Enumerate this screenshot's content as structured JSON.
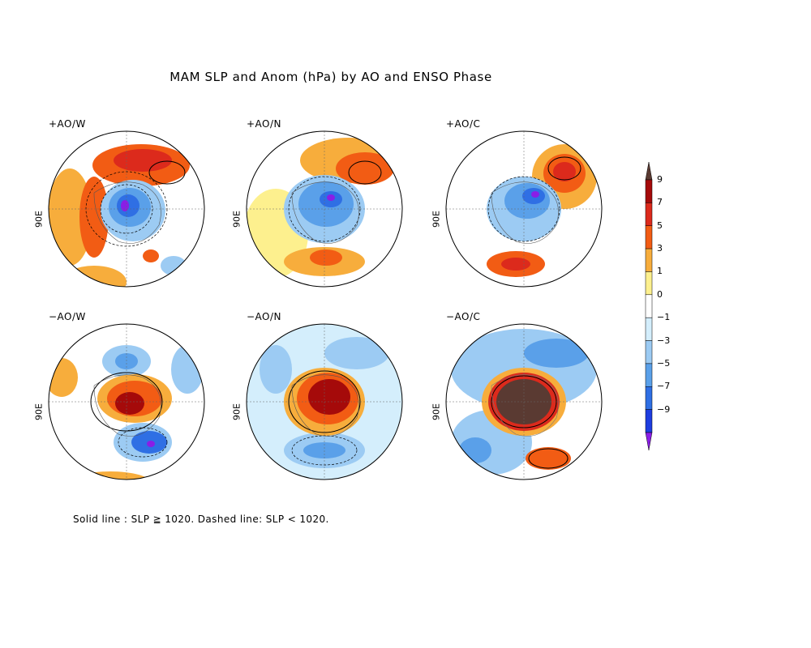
{
  "title": "MAM SLP and Anom (hPa) by AO and ENSO Phase",
  "lon_label": "90E",
  "panels": [
    {
      "label": "+AO/W"
    },
    {
      "label": "+AO/N"
    },
    {
      "label": "+AO/C"
    },
    {
      "label": "−AO/W"
    },
    {
      "label": "−AO/N"
    },
    {
      "label": "−AO/C"
    }
  ],
  "colorbar": {
    "levels": [
      "9",
      "7",
      "5",
      "3",
      "1",
      "0",
      "−1",
      "−3",
      "−5",
      "−7",
      "−9"
    ],
    "colors": [
      "#5a3a32",
      "#a50a0a",
      "#dc2a1c",
      "#f25c14",
      "#f7ad3c",
      "#fdf08e",
      "#ffffff",
      "#d4eefc",
      "#9ccbf3",
      "#5aa0e9",
      "#2f6fe4",
      "#1e3de0",
      "#8a1ee6"
    ],
    "under_color": "#8a1ee6",
    "over_color": "#5a3a32"
  },
  "footnote": "Solid line : SLP ≧ 1020.  Dashed line: SLP < 1020."
}
